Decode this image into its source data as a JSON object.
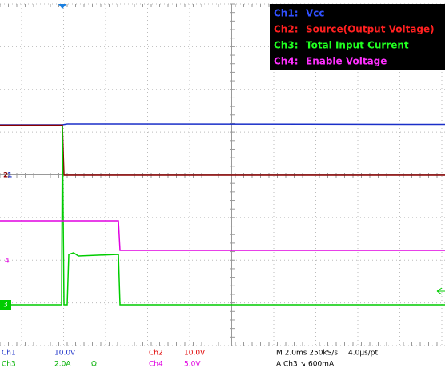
{
  "legend": [
    {
      "channel": "Ch1:",
      "name": "Vcc"
    },
    {
      "channel": "Ch2:",
      "name": "Source(Output Voltage)"
    },
    {
      "channel": "Ch3:",
      "name": "Total Input Current"
    },
    {
      "channel": "Ch4:",
      "name": "Enable Voltage"
    }
  ],
  "markers": [
    "2",
    "1",
    "4",
    "3"
  ],
  "readout": {
    "ch1": {
      "label": "Ch1",
      "scale": "10.0V"
    },
    "ch3": {
      "label": "Ch3",
      "scale": "2.0A",
      "unit": "Ω"
    },
    "ch2": {
      "label": "Ch2",
      "scale": "10.0V"
    },
    "ch4": {
      "label": "Ch4",
      "scale": "5.0V"
    },
    "timebase": "M 2.0ms 250kS/s",
    "resolution": "4.0µs/pt",
    "trigger": "A Ch3 ↘ 600mA"
  }
}
